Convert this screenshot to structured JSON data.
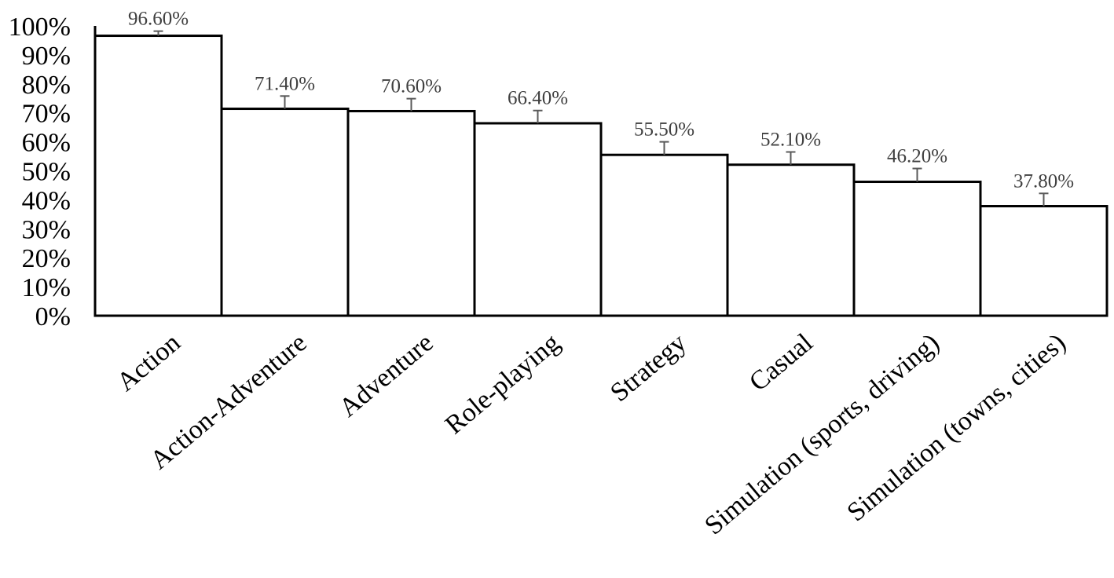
{
  "chart_data": {
    "type": "bar",
    "categories": [
      "Action",
      "Action-Adventure",
      "Adventure",
      "Role-playing",
      "Strategy",
      "Casual",
      "Simulation (sports, driving)",
      "Simulation (towns, cities)"
    ],
    "values": [
      96.6,
      71.4,
      70.6,
      66.4,
      55.5,
      52.1,
      46.2,
      37.8
    ],
    "data_labels": [
      "96.60%",
      "71.40%",
      "70.60%",
      "66.40%",
      "55.50%",
      "52.10%",
      "46.20%",
      "37.80%"
    ],
    "error_upper": [
      1.6,
      4.4,
      4.3,
      4.4,
      4.5,
      4.4,
      4.6,
      4.4
    ],
    "y_ticks": [
      "0%",
      "10%",
      "20%",
      "30%",
      "40%",
      "50%",
      "60%",
      "70%",
      "80%",
      "90%",
      "100%"
    ],
    "ylim": [
      0,
      100
    ],
    "title": "",
    "xlabel": "",
    "ylabel": "",
    "grid": false,
    "legend": "none",
    "colors": {
      "bar_fill": "#ffffff",
      "bar_stroke": "#000000",
      "error_bar": "#595959",
      "data_label": "#404040"
    }
  }
}
